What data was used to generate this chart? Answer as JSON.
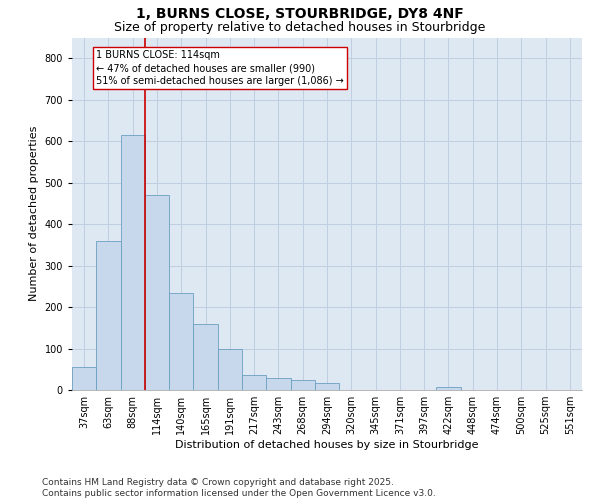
{
  "title1": "1, BURNS CLOSE, STOURBRIDGE, DY8 4NF",
  "title2": "Size of property relative to detached houses in Stourbridge",
  "xlabel": "Distribution of detached houses by size in Stourbridge",
  "ylabel": "Number of detached properties",
  "categories": [
    "37sqm",
    "63sqm",
    "88sqm",
    "114sqm",
    "140sqm",
    "165sqm",
    "191sqm",
    "217sqm",
    "243sqm",
    "268sqm",
    "294sqm",
    "320sqm",
    "345sqm",
    "371sqm",
    "397sqm",
    "422sqm",
    "448sqm",
    "474sqm",
    "500sqm",
    "525sqm",
    "551sqm"
  ],
  "values": [
    55,
    360,
    615,
    470,
    235,
    160,
    100,
    35,
    28,
    25,
    18,
    0,
    0,
    0,
    0,
    8,
    0,
    0,
    0,
    0,
    0
  ],
  "bar_color": "#c8d8ec",
  "bar_edge_color": "#6a9fc0",
  "vline_color": "#cc0000",
  "annotation_text": "1 BURNS CLOSE: 114sqm\n← 47% of detached houses are smaller (990)\n51% of semi-detached houses are larger (1,086) →",
  "annotation_box_color": "#ffffff",
  "annotation_box_edge": "#cc0000",
  "ylim": [
    0,
    850
  ],
  "yticks": [
    0,
    100,
    200,
    300,
    400,
    500,
    600,
    700,
    800
  ],
  "grid_color": "#c0cfe0",
  "background_color": "#dde8f2",
  "footnote": "Contains HM Land Registry data © Crown copyright and database right 2025.\nContains public sector information licensed under the Open Government Licence v3.0.",
  "title_fontsize": 10,
  "subtitle_fontsize": 9,
  "axis_label_fontsize": 8,
  "tick_fontsize": 7,
  "footnote_fontsize": 6.5
}
